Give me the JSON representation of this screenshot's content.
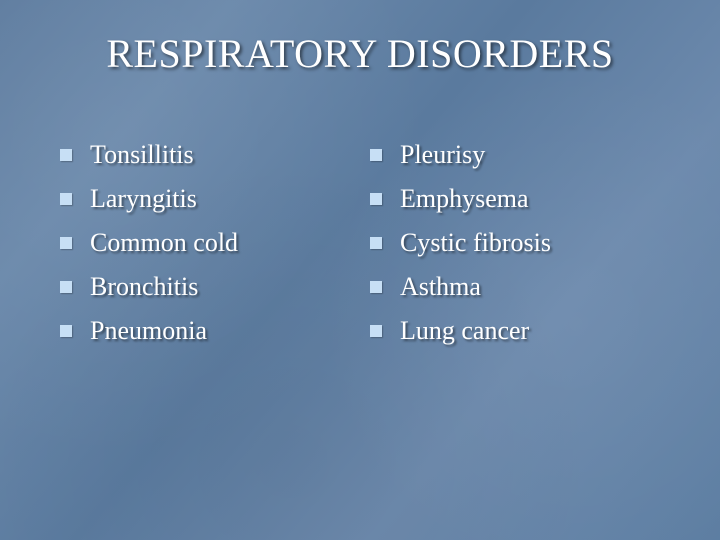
{
  "slide": {
    "title": "RESPIRATORY DISORDERS",
    "title_fontsize": 40,
    "body_fontsize": 26,
    "background_gradient": [
      "#5e7c9f",
      "#6b89ab",
      "#5a7a9e",
      "#6d8aad",
      "#5d7ea2"
    ],
    "text_color": "#ffffff",
    "bullet_color": "#c7dff5",
    "shadow_color": "rgba(0,0,0,0.5)",
    "columns": [
      {
        "items": [
          "Tonsillitis",
          "Laryngitis",
          "Common cold",
          "Bronchitis",
          "Pneumonia"
        ]
      },
      {
        "items": [
          "Pleurisy",
          "Emphysema",
          "Cystic fibrosis",
          "Asthma",
          "Lung cancer"
        ]
      }
    ]
  }
}
